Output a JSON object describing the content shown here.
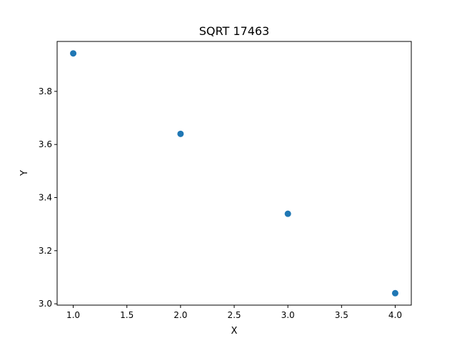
{
  "chart_data": {
    "type": "scatter",
    "title": "SQRT 17463",
    "xlabel": "X",
    "ylabel": "Y",
    "x": [
      1,
      2,
      3,
      4
    ],
    "y": [
      3.943,
      3.64,
      3.339,
      3.04
    ],
    "xlim": [
      0.85,
      4.15
    ],
    "ylim": [
      2.995,
      3.988
    ],
    "xticks": [
      "1.0",
      "1.5",
      "2.0",
      "2.5",
      "3.0",
      "3.5",
      "4.0"
    ],
    "yticks": [
      "3.0",
      "3.2",
      "3.4",
      "3.6",
      "3.8"
    ],
    "marker_color": "#1f77b4",
    "grid": false,
    "legend": false
  }
}
